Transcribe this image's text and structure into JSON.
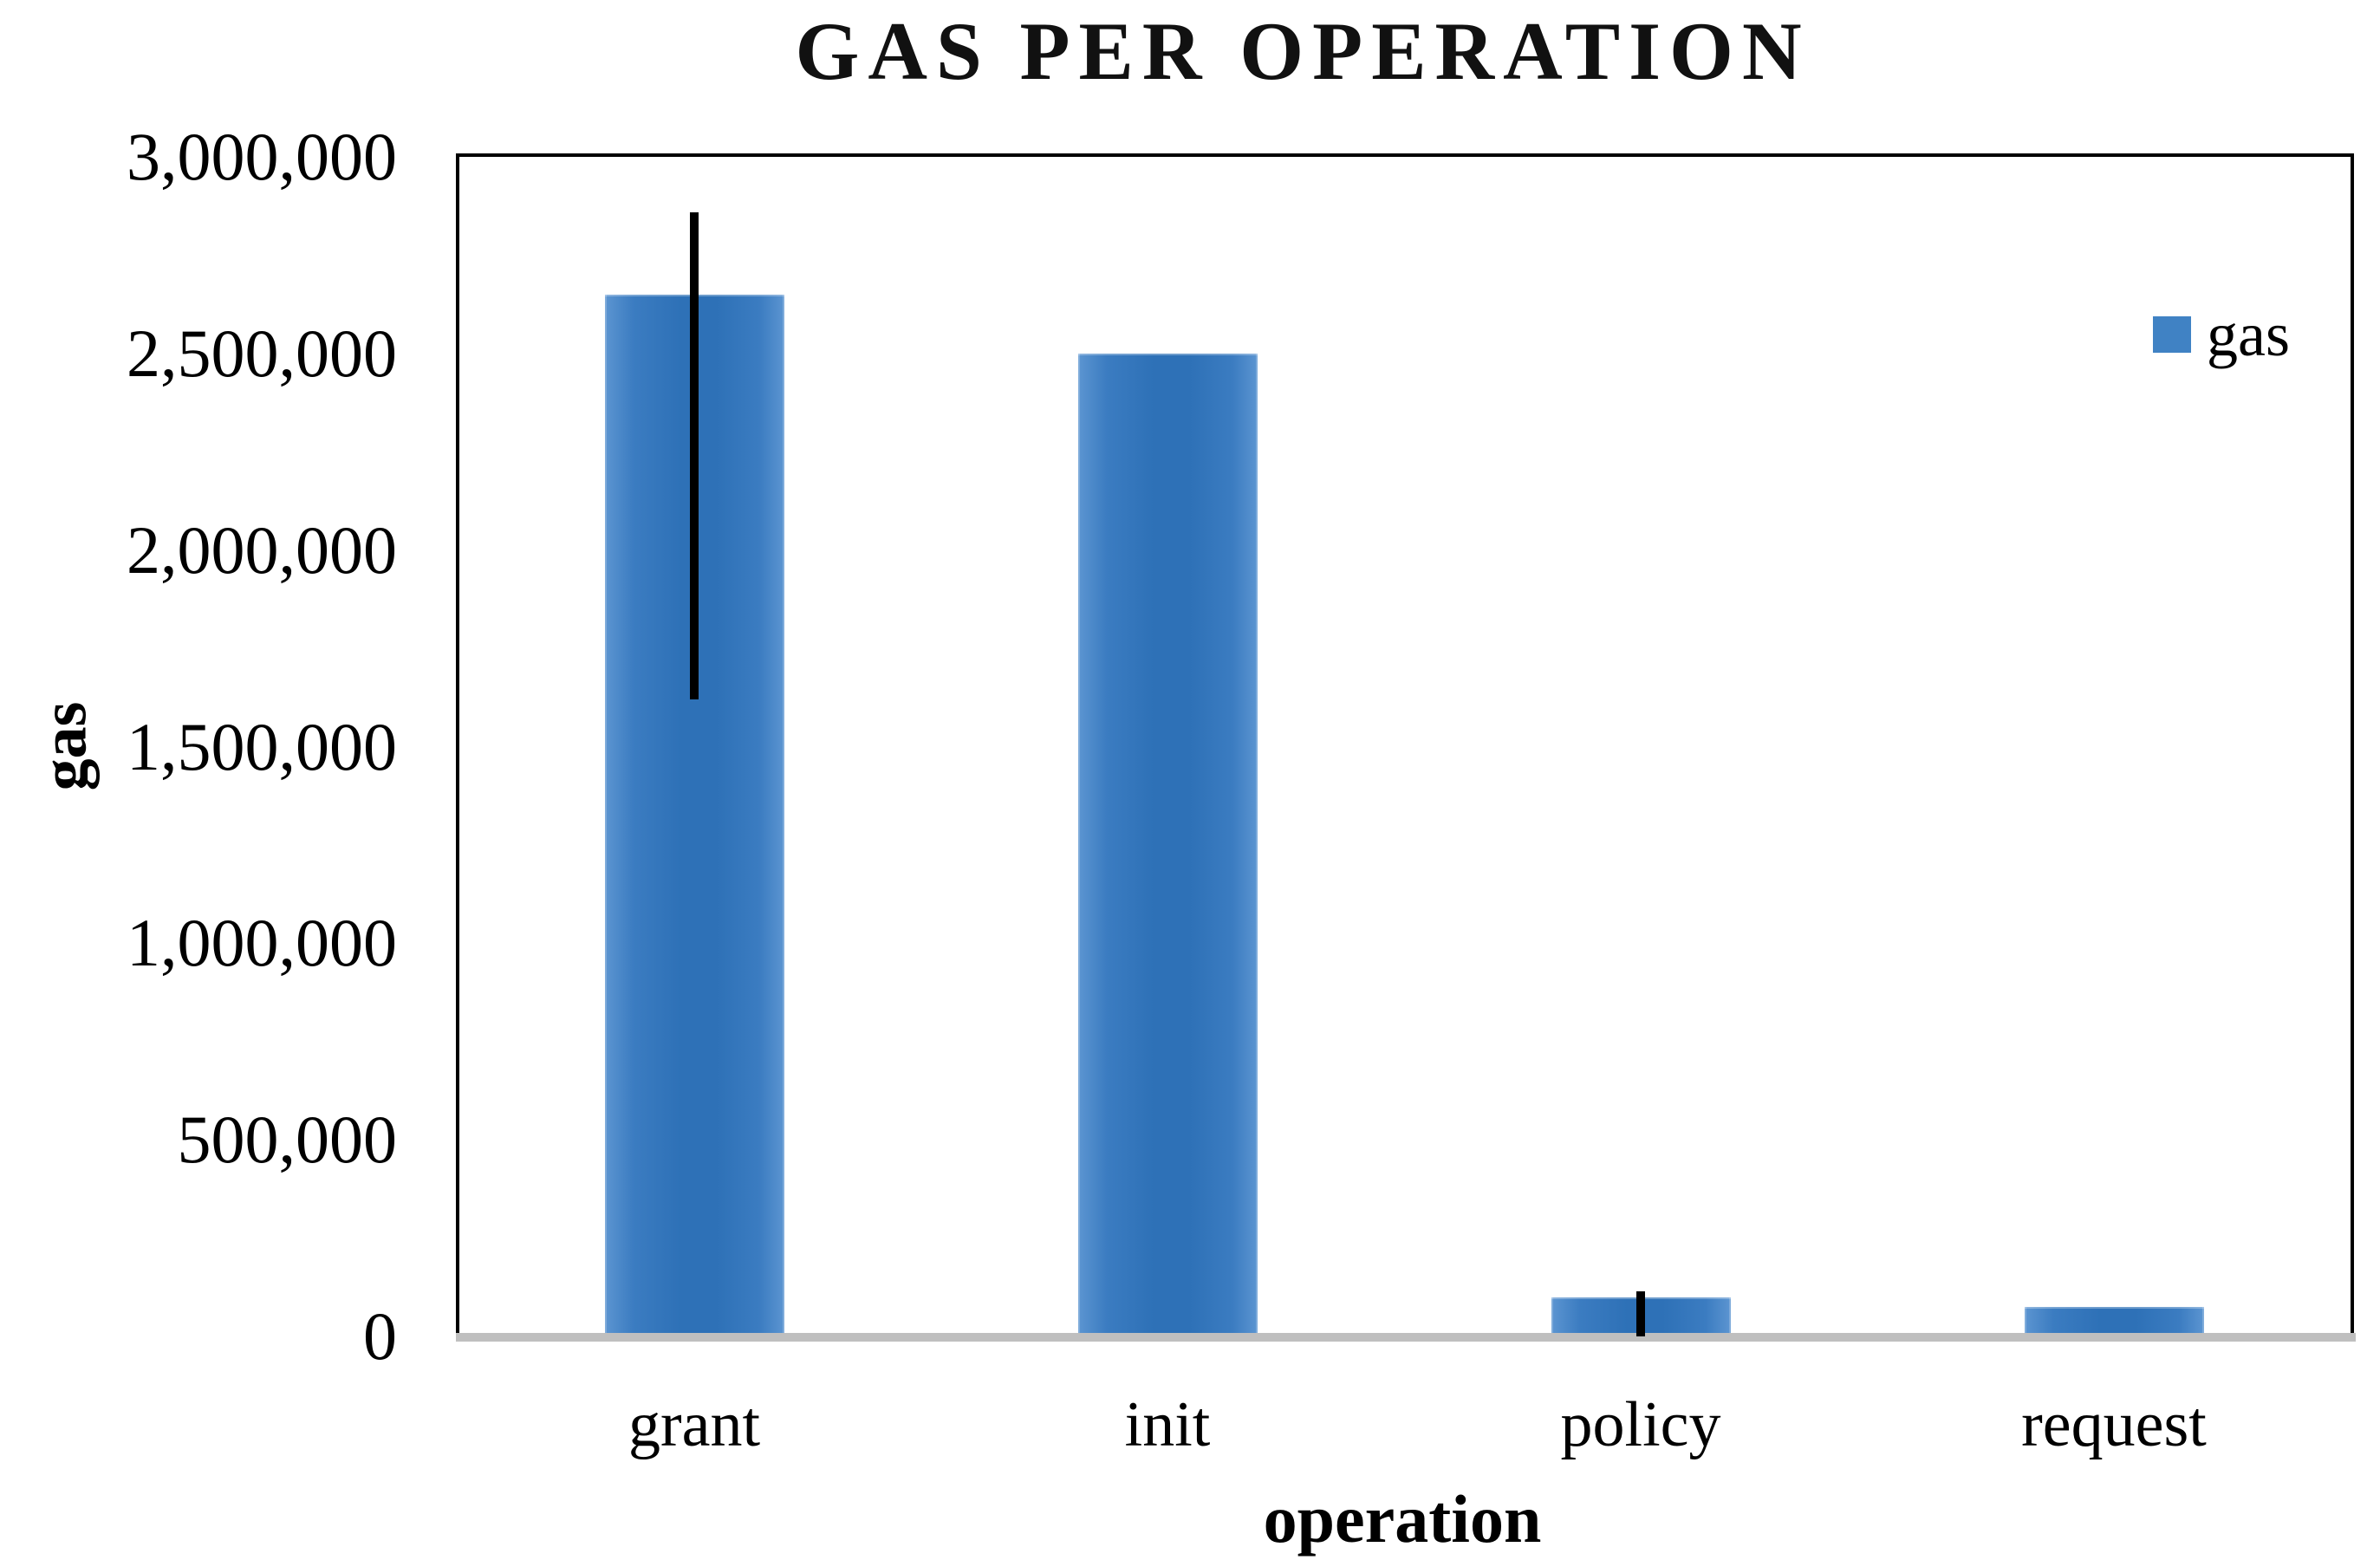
{
  "title": "GAS PER OPERATION",
  "legend": {
    "label": "gas",
    "marker_color": "#4082C4"
  },
  "y_axis": {
    "title": "gas",
    "tick_labels": [
      "0",
      "500,000",
      "1,000,000",
      "1,500,000",
      "2,000,000",
      "2,500,000",
      "3,000,000"
    ]
  },
  "x_axis": {
    "title": "operation",
    "tick_labels": [
      "grant",
      "init",
      "policy",
      "request"
    ]
  },
  "colors": {
    "bar_core": "#2E71B7",
    "bar_mid": "#3B7CC1",
    "bar_edge": "#5C95D1",
    "baseline_band": "#BFBFBF",
    "frame": "#000000",
    "error_bar": "#000000"
  },
  "chart_data": {
    "type": "bar",
    "title": "GAS PER OPERATION",
    "xlabel": "operation",
    "ylabel": "gas",
    "categories": [
      "grant",
      "init",
      "policy",
      "request"
    ],
    "series": [
      {
        "name": "gas",
        "values": [
          2650000,
          2500000,
          100000,
          75000
        ],
        "error_bars": [
          {
            "low": 1620000,
            "high": 2860000
          },
          null,
          {
            "low": 0,
            "high": 115000
          },
          null
        ]
      }
    ],
    "ylim": [
      0,
      3000000
    ],
    "y_tick_step": 500000,
    "grid": false,
    "legend_position": "top-right",
    "legend_entries": [
      "gas"
    ]
  }
}
